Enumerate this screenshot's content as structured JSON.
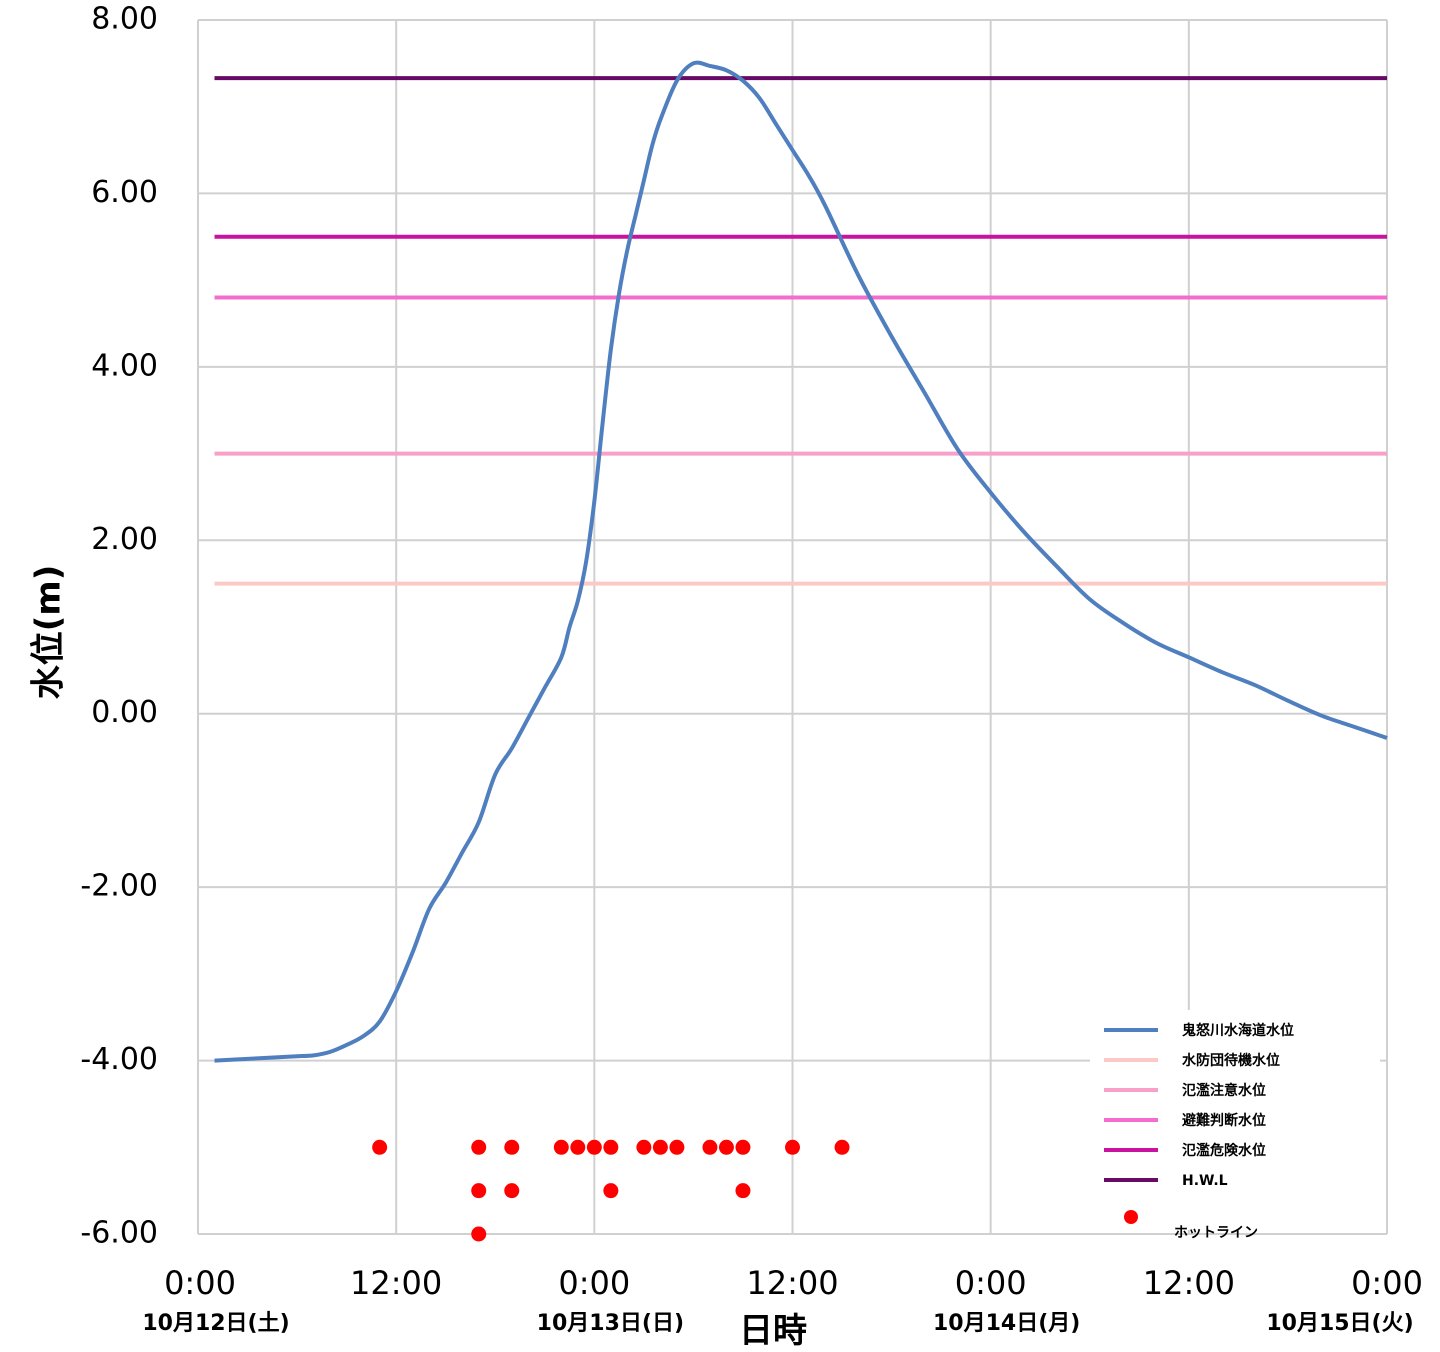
{
  "chart_data": {
    "type": "line",
    "ylabel": "水位(m)",
    "xlabel": "日時",
    "ylim": [
      -6,
      8
    ],
    "xlim_hours": [
      0,
      72
    ],
    "y_ticks": [
      "8.00",
      "6.00",
      "4.00",
      "2.00",
      "0.00",
      "-2.00",
      "-4.00",
      "-6.00"
    ],
    "x_ticks": [
      {
        "hour": 0,
        "label": "0:00",
        "date": "10月12日(土)"
      },
      {
        "hour": 12,
        "label": "12:00",
        "date": ""
      },
      {
        "hour": 24,
        "label": "0:00",
        "date": "10月13日(日)"
      },
      {
        "hour": 36,
        "label": "12:00",
        "date": ""
      },
      {
        "hour": 48,
        "label": "0:00",
        "date": "10月14日(月)"
      },
      {
        "hour": 60,
        "label": "12:00",
        "date": ""
      },
      {
        "hour": 72,
        "label": "0:00",
        "date": "10月15日(火)"
      }
    ],
    "grid": true,
    "legend_position": "bottom-right",
    "series": [
      {
        "name": "鬼怒川水海道水位",
        "color": "#4f7fbf",
        "kind": "line",
        "x": [
          1,
          3,
          5,
          6,
          7,
          8,
          9,
          10,
          11,
          12,
          13,
          14,
          15,
          16,
          17,
          18,
          19,
          20,
          21,
          22,
          22.5,
          23,
          23.5,
          24,
          24.5,
          25,
          25.5,
          26,
          26.5,
          27,
          27.5,
          28,
          29,
          30,
          31,
          32,
          33,
          34,
          35,
          36,
          37,
          38,
          40,
          42,
          44,
          46,
          48,
          50,
          52,
          54,
          56,
          58,
          60,
          62,
          64,
          66,
          68,
          70,
          72
        ],
        "y": [
          -4.0,
          -3.98,
          -3.96,
          -3.95,
          -3.94,
          -3.9,
          -3.82,
          -3.72,
          -3.55,
          -3.2,
          -2.75,
          -2.25,
          -1.95,
          -1.6,
          -1.25,
          -0.7,
          -0.4,
          -0.05,
          0.3,
          0.65,
          1.0,
          1.3,
          1.75,
          2.45,
          3.35,
          4.2,
          4.85,
          5.35,
          5.75,
          6.15,
          6.55,
          6.85,
          7.3,
          7.5,
          7.47,
          7.42,
          7.3,
          7.1,
          6.8,
          6.5,
          6.2,
          5.85,
          5.05,
          4.35,
          3.7,
          3.05,
          2.55,
          2.1,
          1.7,
          1.32,
          1.05,
          0.82,
          0.65,
          0.48,
          0.33,
          0.15,
          -0.02,
          -0.15,
          -0.28
        ]
      },
      {
        "name": "水防団待機水位",
        "color": "#fcc9c5",
        "kind": "hline",
        "value": 1.5
      },
      {
        "name": "氾濫注意水位",
        "color": "#f9a0c8",
        "kind": "hline",
        "value": 3.0
      },
      {
        "name": "避難判断水位",
        "color": "#f46ccd",
        "kind": "hline",
        "value": 4.8
      },
      {
        "name": "氾濫危険水位",
        "color": "#c8139f",
        "kind": "hline",
        "value": 5.5
      },
      {
        "name": "H.W.L",
        "color": "#660a66",
        "kind": "hline",
        "value": 7.33
      },
      {
        "name": "ホットライン",
        "color": "#ff0000",
        "kind": "scatter",
        "points": [
          [
            11,
            -5.0
          ],
          [
            17,
            -5.0
          ],
          [
            19,
            -5.0
          ],
          [
            22,
            -5.0
          ],
          [
            23,
            -5.0
          ],
          [
            24,
            -5.0
          ],
          [
            25,
            -5.0
          ],
          [
            27,
            -5.0
          ],
          [
            28,
            -5.0
          ],
          [
            29,
            -5.0
          ],
          [
            31,
            -5.0
          ],
          [
            32,
            -5.0
          ],
          [
            33,
            -5.0
          ],
          [
            36,
            -5.0
          ],
          [
            39,
            -5.0
          ],
          [
            17,
            -5.5
          ],
          [
            19,
            -5.5
          ],
          [
            25,
            -5.5
          ],
          [
            33,
            -5.5
          ],
          [
            17,
            -6.0
          ]
        ]
      }
    ]
  }
}
